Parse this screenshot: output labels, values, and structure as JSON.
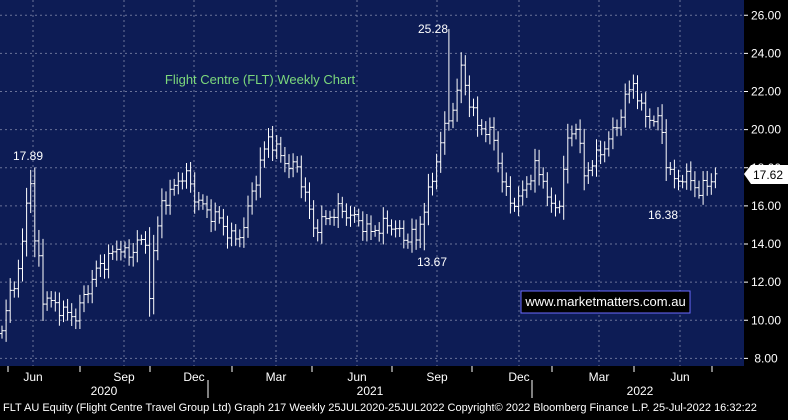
{
  "chart_data": {
    "type": "ohlc",
    "title": "Flight Centre (FLT) Weekly Chart",
    "ylim": [
      7.6,
      26.8
    ],
    "y_ticks": [
      8,
      10,
      12,
      14,
      16,
      18,
      20,
      22,
      24,
      26
    ],
    "y_tick_labels": [
      "8.00",
      "10.00",
      "12.00",
      "14.00",
      "16.00",
      "18.00",
      "20.00",
      "22.00",
      "24.00",
      "26.00"
    ],
    "x_month_labels": [
      "Jun",
      "Sep",
      "Dec",
      "Mar",
      "Jun",
      "Sep",
      "Dec",
      "Mar",
      "Jun"
    ],
    "x_year_labels": [
      "2020",
      "2021",
      "2022"
    ],
    "last_price_label": "17.62",
    "annotations": [
      {
        "text": "17.89",
        "week": 7,
        "value": 17.89
      },
      {
        "text": "25.28",
        "week": 109,
        "value": 25.28
      },
      {
        "text": "13.67",
        "week": 103,
        "value": 13.67
      },
      {
        "text": "16.38",
        "week": 170,
        "value": 16.38
      }
    ],
    "watermark": "www.marketmatters.com.au",
    "footer": "FLT AU Equity (Flight Centre Travel Group Ltd) Graph 217 Weekly 25JUL2020-25JUL2022 Copyright© 2022 Bloomberg Finance L.P. 25-Jul-2022 16:32:22",
    "anchors": [
      [
        0,
        9.3
      ],
      [
        2,
        11.5
      ],
      [
        4,
        12.5
      ],
      [
        5,
        14.0
      ],
      [
        6,
        16.3
      ],
      [
        7,
        17.3
      ],
      [
        8,
        14.0
      ],
      [
        9,
        13.2
      ],
      [
        10,
        11.2
      ],
      [
        13,
        10.8
      ],
      [
        16,
        10.3
      ],
      [
        18,
        10.2
      ],
      [
        20,
        11.2
      ],
      [
        23,
        12.6
      ],
      [
        26,
        13.3
      ],
      [
        29,
        13.9
      ],
      [
        31,
        13.2
      ],
      [
        33,
        14.3
      ],
      [
        35,
        13.8
      ],
      [
        36,
        11.5
      ],
      [
        37,
        13.5
      ],
      [
        39,
        16.2
      ],
      [
        41,
        16.6
      ],
      [
        43,
        17.4
      ],
      [
        45,
        17.6
      ],
      [
        47,
        16.5
      ],
      [
        50,
        15.7
      ],
      [
        53,
        15.3
      ],
      [
        55,
        14.6
      ],
      [
        57,
        14.2
      ],
      [
        59,
        14.9
      ],
      [
        61,
        16.7
      ],
      [
        63,
        18.2
      ],
      [
        65,
        19.6
      ],
      [
        68,
        18.6
      ],
      [
        70,
        18.1
      ],
      [
        72,
        18.0
      ],
      [
        74,
        16.6
      ],
      [
        76,
        14.8
      ],
      [
        79,
        15.3
      ],
      [
        82,
        15.8
      ],
      [
        85,
        15.5
      ],
      [
        87,
        15.2
      ],
      [
        90,
        14.6
      ],
      [
        93,
        15.0
      ],
      [
        96,
        14.9
      ],
      [
        98,
        14.2
      ],
      [
        100,
        14.6
      ],
      [
        101,
        14.1
      ],
      [
        103,
        16.0
      ],
      [
        105,
        17.3
      ],
      [
        107,
        19.5
      ],
      [
        109,
        20.5
      ],
      [
        111,
        22.0
      ],
      [
        112,
        23.2
      ],
      [
        114,
        21.5
      ],
      [
        116,
        20.2
      ],
      [
        118,
        20.0
      ],
      [
        120,
        19.5
      ],
      [
        122,
        17.3
      ],
      [
        124,
        16.2
      ],
      [
        126,
        16.3
      ],
      [
        128,
        17.2
      ],
      [
        130,
        18.0
      ],
      [
        132,
        17.4
      ],
      [
        134,
        15.8
      ],
      [
        136,
        16.2
      ],
      [
        138,
        19.4
      ],
      [
        140,
        20.3
      ],
      [
        142,
        17.6
      ],
      [
        144,
        18.3
      ],
      [
        146,
        18.8
      ],
      [
        148,
        19.5
      ],
      [
        150,
        20.2
      ],
      [
        152,
        21.6
      ],
      [
        154,
        22.5
      ],
      [
        156,
        21.0
      ],
      [
        158,
        20.6
      ],
      [
        160,
        20.4
      ],
      [
        161,
        20.0
      ],
      [
        162,
        18.2
      ],
      [
        164,
        17.3
      ],
      [
        166,
        17.5
      ],
      [
        168,
        17.4
      ],
      [
        170,
        16.7
      ],
      [
        172,
        17.2
      ],
      [
        174,
        17.62
      ]
    ]
  }
}
